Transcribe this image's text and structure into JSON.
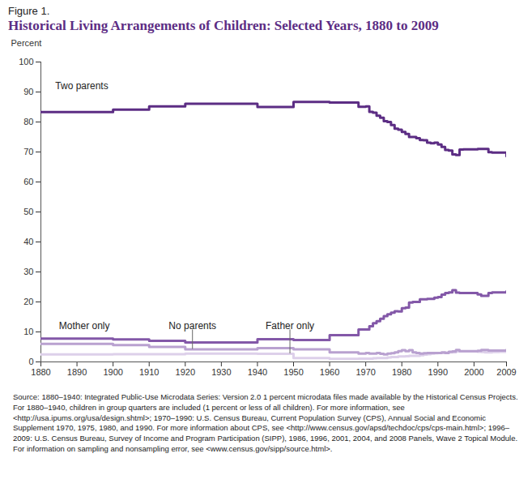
{
  "chart_data": {
    "type": "line",
    "figure_label": "Figure 1.",
    "title": "Historical Living Arrangements of Children: Selected Years, 1880 to 2009",
    "y_label": "Percent",
    "source": "Source: 1880–1940: Integrated Public-Use Microdata Series: Version 2.0 1 percent microdata files made available by the Historical Census Projects. For 1880–1940, children in group quarters are included (1 percent or less of all children). For more information, see <http://usa.ipums.org/usa/design.shtml>; 1970–1990: U.S. Census Bureau, Current Population Survey (CPS), Annual Social and Economic Supplement 1970, 1975, 1980, and 1990. For more information about CPS, see <http://www.census.gov/apsd/techdoc/cps/cps-main.html>;  1996–2009: U.S. Census Bureau, Survey of Income and Program Participation (SIPP), 1986, 1996, 2001, 2004, and 2008 Panels, Wave 2 Topical Module. For information on sampling and nonsampling error, see <www.census.gov/sipp/source.html>.",
    "line_style": "step",
    "grid": false,
    "xlim": [
      1880,
      2009
    ],
    "xticks": [
      1880,
      1890,
      1900,
      1910,
      1920,
      1930,
      1940,
      1950,
      1960,
      1970,
      1980,
      1990,
      2000,
      2009
    ],
    "ylim": [
      0,
      100
    ],
    "yticks": [
      0,
      10,
      20,
      30,
      40,
      50,
      60,
      70,
      80,
      90,
      100
    ],
    "x": [
      1880,
      1900,
      1910,
      1920,
      1940,
      1950,
      1960,
      1968,
      1970,
      1971,
      1972,
      1973,
      1974,
      1975,
      1976,
      1977,
      1978,
      1979,
      1980,
      1981,
      1982,
      1983,
      1984,
      1985,
      1986,
      1987,
      1988,
      1989,
      1990,
      1991,
      1992,
      1993,
      1994,
      1995,
      1996,
      1997,
      1998,
      1999,
      2000,
      2001,
      2002,
      2003,
      2004,
      2005,
      2006,
      2007,
      2008,
      2009
    ],
    "series": [
      {
        "name": "Two parents",
        "color": "#5c2d84",
        "values": [
          83.3,
          84.1,
          85.2,
          86.1,
          85.0,
          86.7,
          86.5,
          85.1,
          85.2,
          83.4,
          83.1,
          82.1,
          81.4,
          80.3,
          80.0,
          79.0,
          77.8,
          77.4,
          76.7,
          76.0,
          75.0,
          75.0,
          74.6,
          74.0,
          73.9,
          73.1,
          72.9,
          73.1,
          72.5,
          71.7,
          70.7,
          70.5,
          69.2,
          69.0,
          70.8,
          70.9,
          70.9,
          70.9,
          70.9,
          71.0,
          71.0,
          71.0,
          69.9,
          69.8,
          69.8,
          69.8,
          69.8,
          68.6
        ]
      },
      {
        "name": "Mother only",
        "color": "#8358a8",
        "values": [
          7.8,
          7.5,
          7.0,
          6.5,
          7.6,
          7.3,
          8.9,
          10.8,
          10.8,
          11.9,
          12.9,
          13.6,
          14.4,
          15.3,
          15.9,
          16.4,
          16.9,
          16.8,
          17.9,
          18.1,
          19.8,
          20.0,
          20.0,
          20.9,
          20.9,
          21.0,
          21.0,
          21.4,
          21.6,
          22.4,
          23.0,
          23.2,
          23.9,
          23.1,
          23.0,
          23.0,
          23.0,
          23.0,
          23.0,
          22.5,
          22.0,
          22.0,
          23.0,
          23.2,
          23.2,
          23.2,
          23.2,
          23.5
        ]
      },
      {
        "name": "No parents",
        "color": "#b9a1d0",
        "values": [
          6.0,
          5.6,
          5.0,
          4.2,
          4.6,
          4.2,
          3.2,
          2.8,
          3.0,
          2.8,
          2.8,
          3.0,
          2.7,
          2.5,
          2.8,
          2.9,
          3.2,
          3.6,
          3.9,
          3.6,
          3.9,
          3.2,
          3.0,
          2.8,
          2.9,
          3.0,
          3.0,
          3.0,
          3.0,
          3.2,
          3.0,
          3.4,
          3.5,
          4.0,
          3.6,
          3.6,
          3.6,
          3.6,
          3.6,
          3.7,
          4.0,
          4.0,
          3.8,
          3.8,
          3.8,
          3.8,
          3.8,
          4.0
        ]
      },
      {
        "name": "Father only",
        "color": "#ddd0ea",
        "values": [
          2.5,
          2.6,
          2.6,
          2.8,
          2.7,
          1.3,
          1.0,
          1.1,
          1.1,
          1.1,
          1.2,
          1.3,
          1.3,
          1.3,
          1.5,
          1.6,
          1.6,
          1.8,
          1.8,
          1.9,
          2.0,
          2.0,
          2.0,
          2.2,
          2.4,
          2.6,
          2.8,
          2.9,
          3.0,
          3.0,
          3.1,
          3.2,
          3.2,
          3.5,
          3.5,
          3.5,
          3.5,
          3.5,
          3.5,
          3.4,
          3.3,
          3.2,
          3.2,
          3.3,
          3.3,
          3.4,
          3.4,
          3.4
        ]
      }
    ]
  }
}
